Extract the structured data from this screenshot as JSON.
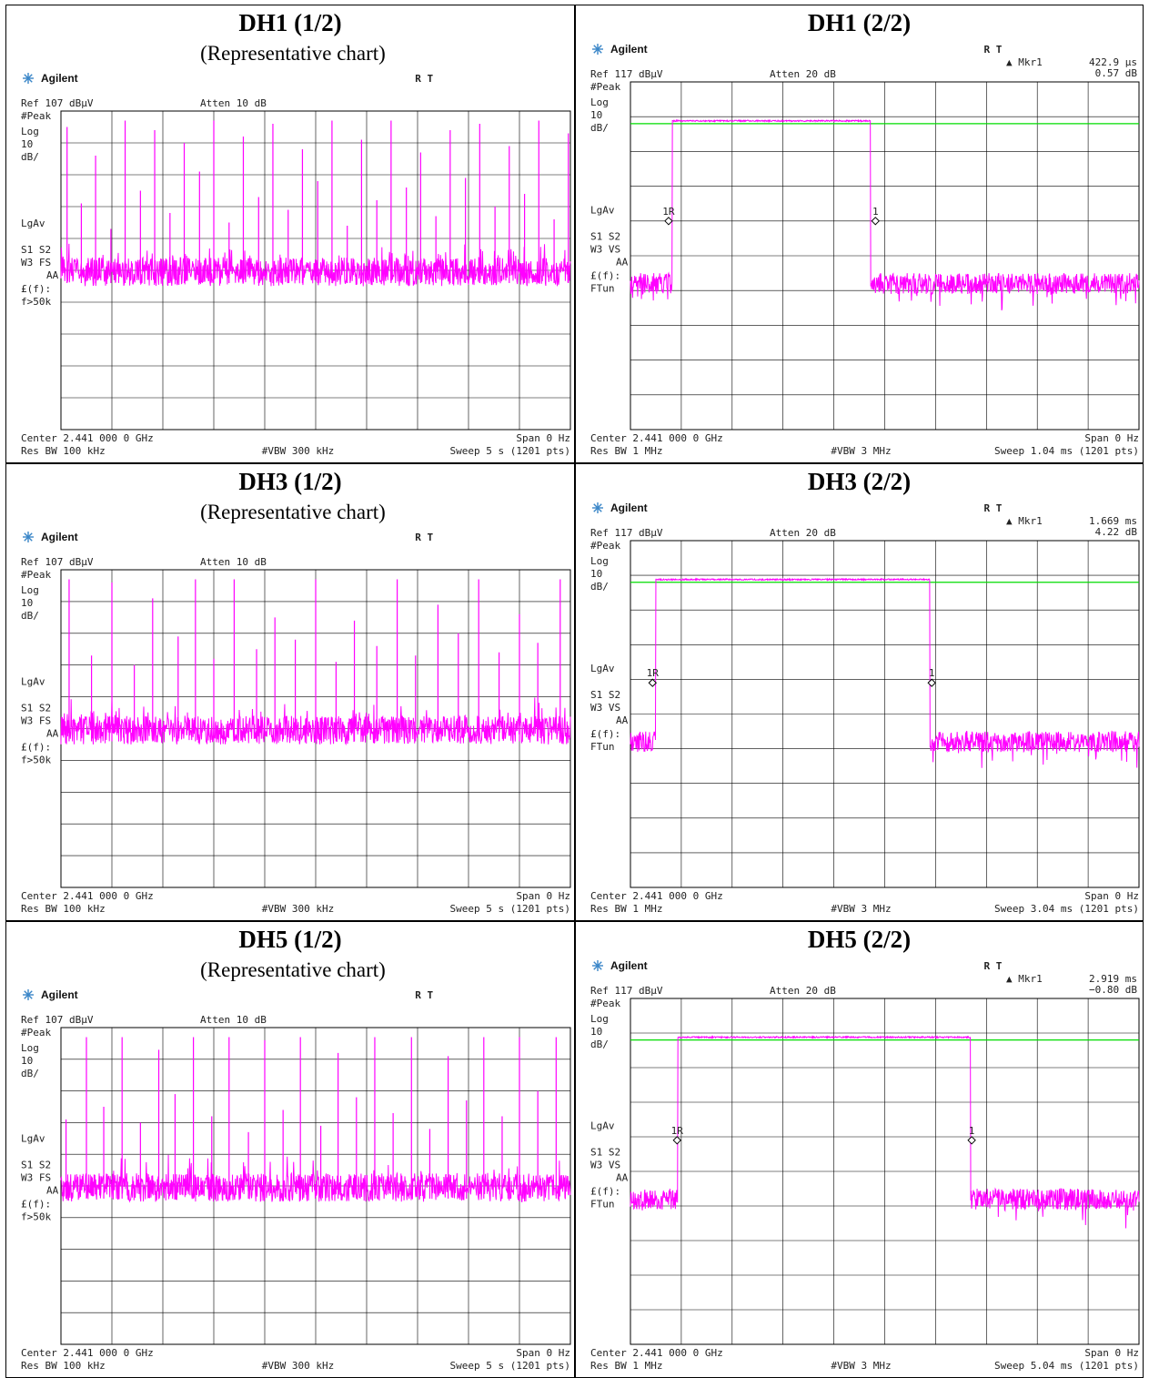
{
  "chart_data": [
    {
      "type": "line",
      "title": "DH1 (1/2)",
      "subtitle": "(Representative chart)",
      "instrument": {
        "brand": "Agilent",
        "mode": "R  T",
        "ref": "Ref 107 dBµV",
        "atten": "Atten 10 dB"
      },
      "side_labels": [
        "#Peak",
        "Log",
        "10",
        "dB/",
        "LgAv",
        "S1  S2",
        "W3  FS",
        "AA",
        "£(f):",
        "f>50k"
      ],
      "footer": {
        "center": "Center 2.441 000 0 GHz",
        "span": "Span 0 Hz",
        "res_bw": "Res BW 100 kHz",
        "vbw": "#VBW 300 kHz",
        "sweep": "Sweep 5 s (1201 pts)"
      },
      "marker": null,
      "yscale": {
        "ref": 107,
        "div": 10,
        "divisions": 10
      },
      "xlim": [
        0,
        5
      ],
      "noise_floor": 53,
      "peaks": {
        "x": [
          0.06,
          0.2,
          0.34,
          0.49,
          0.63,
          0.78,
          0.92,
          1.07,
          1.21,
          1.36,
          1.5,
          1.65,
          1.79,
          1.94,
          2.08,
          2.23,
          2.37,
          2.52,
          2.66,
          2.81,
          2.95,
          3.1,
          3.24,
          3.39,
          3.53,
          3.68,
          3.82,
          3.97,
          4.11,
          4.26,
          4.4,
          4.55,
          4.69,
          4.84,
          4.98
        ],
        "y": [
          102,
          78,
          93,
          70,
          104,
          82,
          101,
          75,
          97,
          88,
          104,
          72,
          99,
          80,
          103,
          76,
          95,
          85,
          104,
          71,
          98,
          79,
          104,
          83,
          94,
          74,
          101,
          86,
          103,
          77,
          96,
          81,
          104,
          73,
          100
        ]
      }
    },
    {
      "type": "line",
      "title": "DH1 (2/2)",
      "instrument": {
        "brand": "Agilent",
        "mode": "R  T",
        "ref": "Ref 117 dBµV",
        "atten": "Atten 20 dB"
      },
      "side_labels": [
        "#Peak",
        "Log",
        "10",
        "dB/",
        "LgAv",
        "S1  S2",
        "W3  VS",
        "AA",
        "£(f):",
        "FTun"
      ],
      "footer": {
        "center": "Center 2.441 000 0 GHz",
        "span": "Span 0 Hz",
        "res_bw": "Res BW 1 MHz",
        "vbw": "#VBW 3 MHz",
        "sweep": "Sweep 1.04 ms (1201 pts)"
      },
      "marker": {
        "label": "▲ Mkr1",
        "time": "422.9 µs",
        "delta": "0.57 dB",
        "m1r_x": 0.078,
        "m1_x": 0.501,
        "level": 77,
        "m1r_text": "1R",
        "m1_text": "1"
      },
      "yscale": {
        "ref": 117,
        "div": 10,
        "divisions": 10
      },
      "xlim": [
        0,
        1.04
      ],
      "display_line": 105,
      "pulse": {
        "start": 0.085,
        "end": 0.491,
        "top": 106
      },
      "noise_floor": 58
    },
    {
      "type": "line",
      "title": "DH3 (1/2)",
      "subtitle": "(Representative chart)",
      "instrument": {
        "brand": "Agilent",
        "mode": "R  T",
        "ref": "Ref 107 dBµV",
        "atten": "Atten 10 dB"
      },
      "side_labels": [
        "#Peak",
        "Log",
        "10",
        "dB/",
        "LgAv",
        "S1  S2",
        "W3  FS",
        "AA",
        "£(f):",
        "f>50k"
      ],
      "footer": {
        "center": "Center 2.441 000 0 GHz",
        "span": "Span 0 Hz",
        "res_bw": "Res BW 100 kHz",
        "vbw": "#VBW 300 kHz",
        "sweep": "Sweep 5 s (1201 pts)"
      },
      "marker": null,
      "yscale": {
        "ref": 107,
        "div": 10,
        "divisions": 10
      },
      "xlim": [
        0,
        5
      ],
      "noise_floor": 53,
      "peaks": {
        "x": [
          0.08,
          0.3,
          0.5,
          0.72,
          0.9,
          1.15,
          1.32,
          1.5,
          1.7,
          1.92,
          2.1,
          2.3,
          2.5,
          2.7,
          2.88,
          3.1,
          3.3,
          3.48,
          3.7,
          3.9,
          4.1,
          4.3,
          4.5,
          4.68,
          4.9
        ],
        "y": [
          104,
          80,
          103,
          77,
          98,
          86,
          104,
          79,
          104,
          82,
          92,
          85,
          104,
          78,
          91,
          83,
          104,
          80,
          96,
          87,
          104,
          81,
          93,
          84,
          104
        ]
      }
    },
    {
      "type": "line",
      "title": "DH3 (2/2)",
      "instrument": {
        "brand": "Agilent",
        "mode": "R  T",
        "ref": "Ref 117 dBµV",
        "atten": "Atten 20 dB"
      },
      "side_labels": [
        "#Peak",
        "Log",
        "10",
        "dB/",
        "LgAv",
        "S1  S2",
        "W3  VS",
        "AA",
        "£(f):",
        "FTun"
      ],
      "footer": {
        "center": "Center 2.441 000 0 GHz",
        "span": "Span 0 Hz",
        "res_bw": "Res BW 1 MHz",
        "vbw": "#VBW 3 MHz",
        "sweep": "Sweep 3.04 ms (1201 pts)"
      },
      "marker": {
        "label": "▲ Mkr1",
        "time": "1.669 ms",
        "delta": "4.22 dB",
        "m1r_x": 0.132,
        "m1_x": 1.801,
        "level": 76,
        "m1r_text": "1R",
        "m1_text": "1"
      },
      "yscale": {
        "ref": 117,
        "div": 10,
        "divisions": 10
      },
      "xlim": [
        0,
        3.04
      ],
      "display_line": 105,
      "pulse": {
        "start": 0.15,
        "end": 1.79,
        "top": 106
      },
      "noise_floor": 58
    },
    {
      "type": "line",
      "title": "DH5 (1/2)",
      "subtitle": "(Representative chart)",
      "instrument": {
        "brand": "Agilent",
        "mode": "R  T",
        "ref": "Ref 107 dBµV",
        "atten": "Atten 10 dB"
      },
      "side_labels": [
        "#Peak",
        "Log",
        "10",
        "dB/",
        "LgAv",
        "S1  S2",
        "W3  FS",
        "AA",
        "£(f):",
        "f>50k"
      ],
      "footer": {
        "center": "Center 2.441 000 0 GHz",
        "span": "Span 0 Hz",
        "res_bw": "Res BW 100 kHz",
        "vbw": "#VBW 300 kHz",
        "sweep": "Sweep 5 s (1201 pts)"
      },
      "marker": null,
      "yscale": {
        "ref": 107,
        "div": 10,
        "divisions": 10
      },
      "xlim": [
        0,
        5
      ],
      "noise_floor": 53,
      "peaks": {
        "x": [
          0.05,
          0.25,
          0.42,
          0.6,
          0.78,
          0.96,
          1.12,
          1.3,
          1.48,
          1.65,
          1.84,
          2.0,
          2.18,
          2.35,
          2.55,
          2.72,
          2.9,
          3.08,
          3.26,
          3.44,
          3.62,
          3.8,
          3.98,
          4.15,
          4.33,
          4.5,
          4.68,
          4.86
        ],
        "y": [
          78,
          104,
          82,
          104,
          77,
          100,
          86,
          104,
          79,
          104,
          74,
          103,
          81,
          104,
          76,
          99,
          85,
          104,
          80,
          104,
          75,
          98,
          84,
          104,
          79,
          104,
          87,
          104
        ]
      }
    },
    {
      "type": "line",
      "title": "DH5 (2/2)",
      "instrument": {
        "brand": "Agilent",
        "mode": "R  T",
        "ref": "Ref 117 dBµV",
        "atten": "Atten 20 dB"
      },
      "side_labels": [
        "#Peak",
        "Log",
        "10",
        "dB/",
        "LgAv",
        "S1  S2",
        "W3  VS",
        "AA",
        "£(f):",
        "FTun"
      ],
      "footer": {
        "center": "Center 2.441 000 0 GHz",
        "span": "Span 0 Hz",
        "res_bw": "Res BW 1 MHz",
        "vbw": "#VBW 3 MHz",
        "sweep": "Sweep 5.04 ms (1201 pts)"
      },
      "marker": {
        "label": "▲ Mkr1",
        "time": "2.919 ms",
        "delta": "−0.80 dB",
        "m1r_x": 0.462,
        "m1_x": 3.382,
        "level": 76,
        "m1r_text": "1R",
        "m1_text": "1"
      },
      "yscale": {
        "ref": 117,
        "div": 10,
        "divisions": 10
      },
      "xlim": [
        0,
        5.04
      ],
      "display_line": 105,
      "pulse": {
        "start": 0.47,
        "end": 3.37,
        "top": 106
      },
      "noise_floor": 58
    }
  ],
  "colors": {
    "trace": "#ff00ff",
    "display_line": "#00dd00",
    "grid": "#000000",
    "agilent_star": "#3a86c8"
  }
}
